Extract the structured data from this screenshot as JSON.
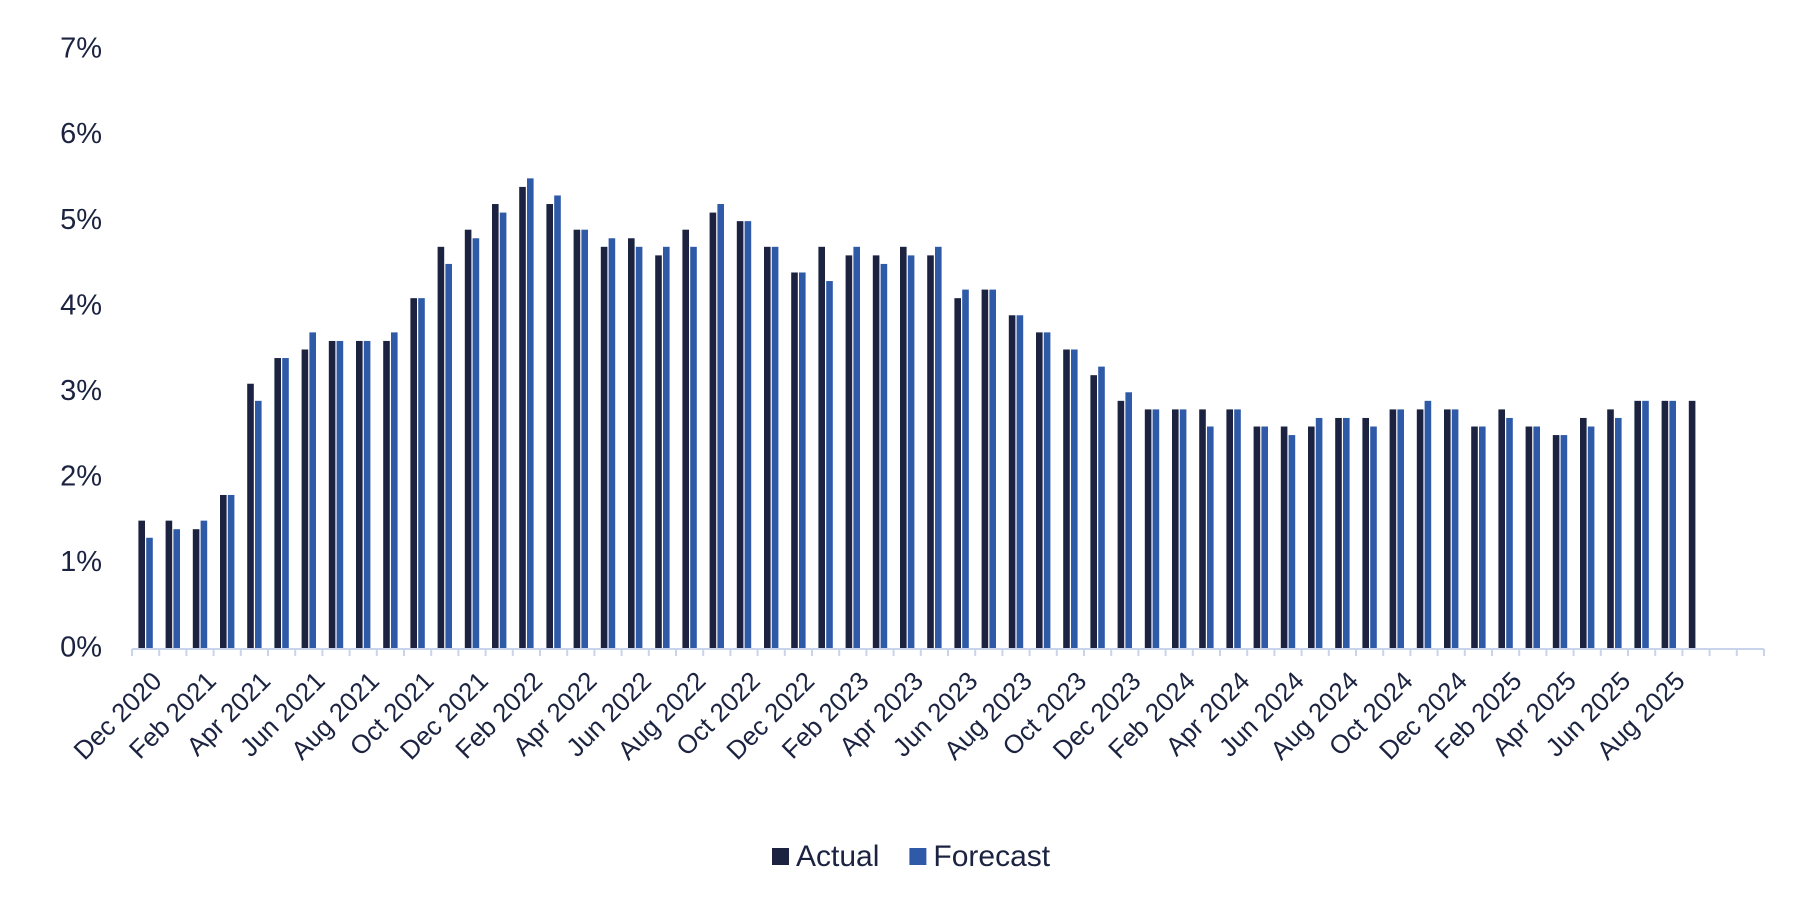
{
  "chart_data": {
    "type": "bar",
    "categories": [
      "Dec 2020",
      null,
      "Feb 2021",
      null,
      "Apr 2021",
      null,
      "Jun 2021",
      null,
      "Aug 2021",
      null,
      "Oct 2021",
      null,
      "Dec 2021",
      null,
      "Feb 2022",
      null,
      "Apr 2022",
      null,
      "Jun 2022",
      null,
      "Aug 2022",
      null,
      "Oct 2022",
      null,
      "Dec 2022",
      null,
      "Feb 2023",
      null,
      "Apr 2023",
      null,
      "Jun 2023",
      null,
      "Aug 2023",
      null,
      "Oct 2023",
      null,
      "Dec 2023",
      null,
      "Feb 2024",
      null,
      "Apr 2024",
      null,
      "Jun 2024",
      null,
      "Aug 2024",
      null,
      "Oct 2024",
      null,
      "Dec 2024",
      null,
      "Feb 2025",
      null,
      "Apr 2025",
      null,
      "Jun 2025",
      null,
      "Aug 2025",
      null
    ],
    "series": [
      {
        "name": "Actual",
        "color": "#1b2340",
        "values": [
          1.5,
          1.5,
          1.4,
          1.8,
          3.1,
          3.4,
          3.5,
          3.6,
          3.6,
          3.6,
          4.1,
          4.7,
          4.9,
          5.2,
          5.4,
          5.2,
          4.9,
          4.7,
          4.8,
          4.6,
          4.9,
          5.1,
          5.0,
          4.7,
          4.4,
          4.7,
          4.6,
          4.6,
          4.7,
          4.6,
          4.1,
          4.2,
          3.9,
          3.7,
          3.5,
          3.2,
          2.9,
          2.8,
          2.8,
          2.8,
          2.8,
          2.6,
          2.6,
          2.6,
          2.7,
          2.7,
          2.8,
          2.8,
          2.8,
          2.6,
          2.8,
          2.6,
          2.5,
          2.7,
          2.8,
          2.9,
          2.9,
          2.9
        ]
      },
      {
        "name": "Forecast",
        "color": "#2f5aa8",
        "values": [
          1.3,
          1.4,
          1.5,
          1.8,
          2.9,
          3.4,
          3.7,
          3.6,
          3.6,
          3.7,
          4.1,
          4.5,
          4.8,
          5.1,
          5.5,
          5.3,
          4.9,
          4.8,
          4.7,
          4.7,
          4.7,
          5.2,
          5.0,
          4.7,
          4.4,
          4.3,
          4.7,
          4.5,
          4.6,
          4.7,
          4.2,
          4.2,
          3.9,
          3.7,
          3.5,
          3.3,
          3.0,
          2.8,
          2.8,
          2.6,
          2.8,
          2.6,
          2.5,
          2.7,
          2.7,
          2.6,
          2.8,
          2.9,
          2.8,
          2.6,
          2.7,
          2.6,
          2.5,
          2.6,
          2.7,
          2.9,
          2.9,
          null
        ]
      }
    ],
    "ylim": [
      0,
      7
    ],
    "yticks": [
      {
        "value": 0,
        "label": "0%"
      },
      {
        "value": 1,
        "label": "1%"
      },
      {
        "value": 2,
        "label": "2%"
      },
      {
        "value": 3,
        "label": "3%"
      },
      {
        "value": 4,
        "label": "4%"
      },
      {
        "value": 5,
        "label": "5%"
      },
      {
        "value": 6,
        "label": "6%"
      },
      {
        "value": 7,
        "label": "7%"
      }
    ],
    "grid": false,
    "legend": "bottom"
  }
}
